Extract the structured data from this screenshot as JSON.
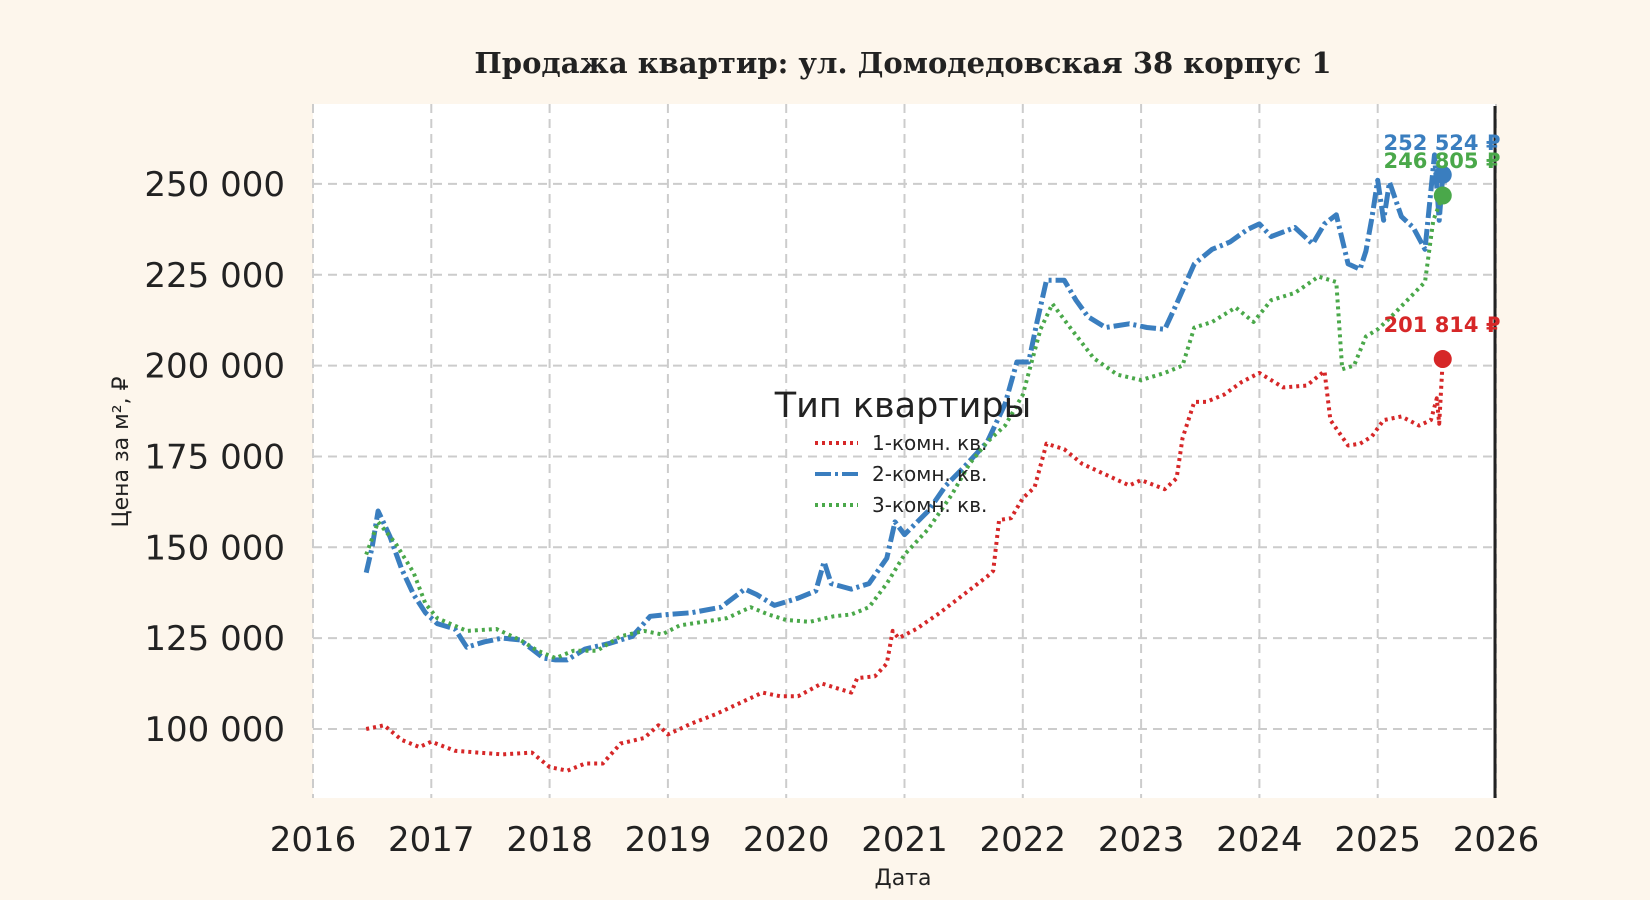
{
  "chart_data": {
    "type": "line",
    "title": "Продажа квартир: ул. Домодедовская 38 корпус 1",
    "xlabel": "Дата",
    "ylabel": "Цена за м², ₽",
    "xlim": [
      2016,
      2026
    ],
    "ylim": [
      81000,
      272000
    ],
    "x_ticks": [
      "2016",
      "2017",
      "2018",
      "2019",
      "2020",
      "2021",
      "2022",
      "2023",
      "2024",
      "2025",
      "2026"
    ],
    "y_ticks": [
      "100 000",
      "125 000",
      "150 000",
      "175 000",
      "200 000",
      "225 000",
      "250 000"
    ],
    "y_tick_values": [
      100000,
      125000,
      150000,
      175000,
      200000,
      225000,
      250000
    ],
    "grid": true,
    "legend": {
      "title": "Тип квартиры",
      "position": "center",
      "entries": [
        "1-комн. кв.",
        "2-комн. кв.",
        "3-комн. кв."
      ]
    },
    "series": [
      {
        "name": "1-комн. кв.",
        "color": "#d62728",
        "style": "dotted",
        "last_value": 201814,
        "end_label": "201 814 ₽",
        "points": [
          [
            2016.45,
            100000
          ],
          [
            2016.6,
            101000
          ],
          [
            2016.75,
            97000
          ],
          [
            2016.9,
            95000
          ],
          [
            2017.0,
            96500
          ],
          [
            2017.2,
            94000
          ],
          [
            2017.4,
            93500
          ],
          [
            2017.6,
            93000
          ],
          [
            2017.85,
            93500
          ],
          [
            2018.0,
            89500
          ],
          [
            2018.15,
            88500
          ],
          [
            2018.3,
            90500
          ],
          [
            2018.45,
            90500
          ],
          [
            2018.6,
            96000
          ],
          [
            2018.8,
            97500
          ],
          [
            2018.92,
            101000
          ],
          [
            2019.0,
            98500
          ],
          [
            2019.2,
            101500
          ],
          [
            2019.4,
            104000
          ],
          [
            2019.6,
            107000
          ],
          [
            2019.8,
            110000
          ],
          [
            2019.95,
            109000
          ],
          [
            2020.1,
            109000
          ],
          [
            2020.3,
            112500
          ],
          [
            2020.45,
            111000
          ],
          [
            2020.55,
            110000
          ],
          [
            2020.6,
            114000
          ],
          [
            2020.75,
            114500
          ],
          [
            2020.85,
            118000
          ],
          [
            2020.9,
            127000
          ],
          [
            2020.95,
            125000
          ],
          [
            2021.1,
            127500
          ],
          [
            2021.3,
            132000
          ],
          [
            2021.5,
            137000
          ],
          [
            2021.7,
            142000
          ],
          [
            2021.75,
            143500
          ],
          [
            2021.8,
            157500
          ],
          [
            2021.9,
            158000
          ],
          [
            2022.0,
            163500
          ],
          [
            2022.1,
            166500
          ],
          [
            2022.2,
            178500
          ],
          [
            2022.35,
            177000
          ],
          [
            2022.5,
            173000
          ],
          [
            2022.7,
            170000
          ],
          [
            2022.9,
            167000
          ],
          [
            2023.0,
            168500
          ],
          [
            2023.2,
            166000
          ],
          [
            2023.3,
            169000
          ],
          [
            2023.35,
            180000
          ],
          [
            2023.45,
            190000
          ],
          [
            2023.55,
            190000
          ],
          [
            2023.7,
            192000
          ],
          [
            2023.85,
            195500
          ],
          [
            2024.0,
            198000
          ],
          [
            2024.2,
            194000
          ],
          [
            2024.4,
            194500
          ],
          [
            2024.55,
            198500
          ],
          [
            2024.6,
            185000
          ],
          [
            2024.75,
            178000
          ],
          [
            2024.85,
            178500
          ],
          [
            2024.95,
            180500
          ],
          [
            2025.05,
            185000
          ],
          [
            2025.2,
            186000
          ],
          [
            2025.35,
            183500
          ],
          [
            2025.45,
            185000
          ],
          [
            2025.5,
            191000
          ],
          [
            2025.52,
            184000
          ],
          [
            2025.55,
            201814
          ]
        ]
      },
      {
        "name": "2-комн. кв.",
        "color": "#3a7ebf",
        "style": "dashdot",
        "last_value": 252524,
        "end_label": "252 524 ₽",
        "points": [
          [
            2016.45,
            143000
          ],
          [
            2016.5,
            150000
          ],
          [
            2016.55,
            160000
          ],
          [
            2016.65,
            153000
          ],
          [
            2016.75,
            144000
          ],
          [
            2016.85,
            137000
          ],
          [
            2016.95,
            132000
          ],
          [
            2017.05,
            129000
          ],
          [
            2017.2,
            127500
          ],
          [
            2017.3,
            122500
          ],
          [
            2017.45,
            124000
          ],
          [
            2017.6,
            125000
          ],
          [
            2017.75,
            124500
          ],
          [
            2017.85,
            122000
          ],
          [
            2017.95,
            119500
          ],
          [
            2018.05,
            119000
          ],
          [
            2018.15,
            119000
          ],
          [
            2018.3,
            122000
          ],
          [
            2018.5,
            123500
          ],
          [
            2018.7,
            125500
          ],
          [
            2018.85,
            131000
          ],
          [
            2019.0,
            131500
          ],
          [
            2019.2,
            132000
          ],
          [
            2019.45,
            133500
          ],
          [
            2019.65,
            138500
          ],
          [
            2019.75,
            137000
          ],
          [
            2019.9,
            134000
          ],
          [
            2020.1,
            136000
          ],
          [
            2020.25,
            138000
          ],
          [
            2020.32,
            146000
          ],
          [
            2020.38,
            140000
          ],
          [
            2020.55,
            138500
          ],
          [
            2020.7,
            140000
          ],
          [
            2020.85,
            147000
          ],
          [
            2020.92,
            157000
          ],
          [
            2021.0,
            153500
          ],
          [
            2021.2,
            160000
          ],
          [
            2021.35,
            167000
          ],
          [
            2021.5,
            172000
          ],
          [
            2021.7,
            179000
          ],
          [
            2021.85,
            189500
          ],
          [
            2021.95,
            201000
          ],
          [
            2022.05,
            201000
          ],
          [
            2022.12,
            212000
          ],
          [
            2022.2,
            223500
          ],
          [
            2022.35,
            223500
          ],
          [
            2022.45,
            218000
          ],
          [
            2022.55,
            213500
          ],
          [
            2022.7,
            210500
          ],
          [
            2022.9,
            211500
          ],
          [
            2023.05,
            210500
          ],
          [
            2023.2,
            210000
          ],
          [
            2023.3,
            217000
          ],
          [
            2023.45,
            228000
          ],
          [
            2023.6,
            232000
          ],
          [
            2023.75,
            234000
          ],
          [
            2023.9,
            237500
          ],
          [
            2024.0,
            239000
          ],
          [
            2024.1,
            235500
          ],
          [
            2024.3,
            238000
          ],
          [
            2024.45,
            233500
          ],
          [
            2024.55,
            239000
          ],
          [
            2024.65,
            241500
          ],
          [
            2024.75,
            228000
          ],
          [
            2024.85,
            226500
          ],
          [
            2024.9,
            231500
          ],
          [
            2024.95,
            240500
          ],
          [
            2025.0,
            251000
          ],
          [
            2025.05,
            240000
          ],
          [
            2025.1,
            250500
          ],
          [
            2025.2,
            241000
          ],
          [
            2025.3,
            238000
          ],
          [
            2025.4,
            232000
          ],
          [
            2025.48,
            258000
          ],
          [
            2025.52,
            240000
          ],
          [
            2025.55,
            252524
          ]
        ]
      },
      {
        "name": "3-комн. кв.",
        "color": "#4aa84a",
        "style": "dotted",
        "last_value": 246805,
        "end_label": "246 805 ₽",
        "points": [
          [
            2016.45,
            148000
          ],
          [
            2016.55,
            157000
          ],
          [
            2016.7,
            151000
          ],
          [
            2016.85,
            143000
          ],
          [
            2016.95,
            134500
          ],
          [
            2017.05,
            130500
          ],
          [
            2017.3,
            127000
          ],
          [
            2017.55,
            127500
          ],
          [
            2017.75,
            124500
          ],
          [
            2017.9,
            121500
          ],
          [
            2018.05,
            119500
          ],
          [
            2018.2,
            121500
          ],
          [
            2018.4,
            121500
          ],
          [
            2018.6,
            125500
          ],
          [
            2018.8,
            127000
          ],
          [
            2018.95,
            126000
          ],
          [
            2019.1,
            128500
          ],
          [
            2019.3,
            129500
          ],
          [
            2019.5,
            130500
          ],
          [
            2019.7,
            133500
          ],
          [
            2019.85,
            131500
          ],
          [
            2020.0,
            130000
          ],
          [
            2020.2,
            129500
          ],
          [
            2020.4,
            131000
          ],
          [
            2020.55,
            131500
          ],
          [
            2020.7,
            133500
          ],
          [
            2020.85,
            140000
          ],
          [
            2021.0,
            148000
          ],
          [
            2021.2,
            155000
          ],
          [
            2021.4,
            164500
          ],
          [
            2021.55,
            173000
          ],
          [
            2021.7,
            179000
          ],
          [
            2021.85,
            183500
          ],
          [
            2022.0,
            192000
          ],
          [
            2022.15,
            210000
          ],
          [
            2022.25,
            217000
          ],
          [
            2022.4,
            210500
          ],
          [
            2022.6,
            202000
          ],
          [
            2022.8,
            197500
          ],
          [
            2023.0,
            196000
          ],
          [
            2023.2,
            198000
          ],
          [
            2023.35,
            200000
          ],
          [
            2023.45,
            210500
          ],
          [
            2023.6,
            212000
          ],
          [
            2023.8,
            216000
          ],
          [
            2023.95,
            212000
          ],
          [
            2024.1,
            218000
          ],
          [
            2024.3,
            220000
          ],
          [
            2024.5,
            224500
          ],
          [
            2024.65,
            223000
          ],
          [
            2024.7,
            199000
          ],
          [
            2024.8,
            200000
          ],
          [
            2024.9,
            208000
          ],
          [
            2025.0,
            210000
          ],
          [
            2025.1,
            213000
          ],
          [
            2025.25,
            218000
          ],
          [
            2025.4,
            223000
          ],
          [
            2025.47,
            240000
          ],
          [
            2025.55,
            246805
          ]
        ]
      }
    ]
  }
}
